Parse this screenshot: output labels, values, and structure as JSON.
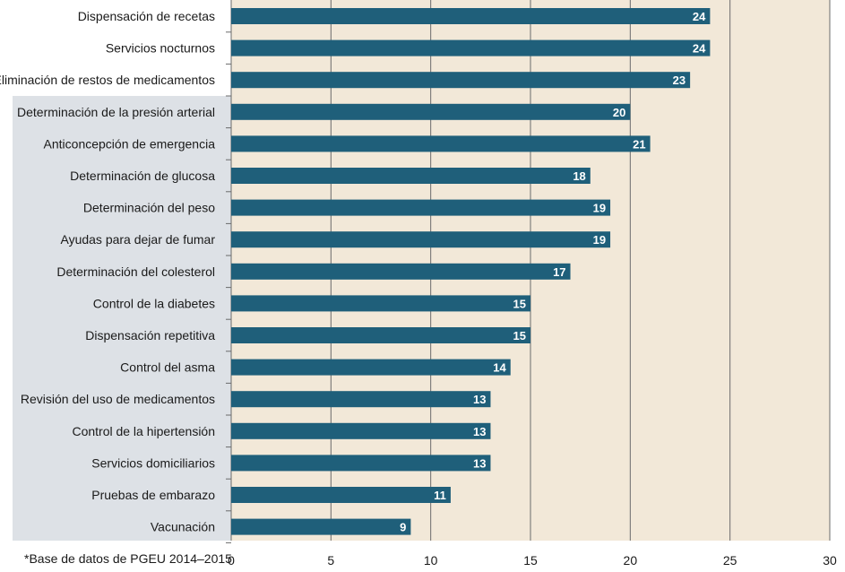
{
  "footnote": "*Base de datos de PGEU 2014–2015",
  "colors": {
    "bar": "#1f5f7a",
    "plot_background": "#f2e8d8",
    "highlight_band": "#dde1e6",
    "gridline": "#6b6b6b",
    "value_text": "#ffffff"
  },
  "chart_data": {
    "type": "bar",
    "orientation": "horizontal",
    "categories": [
      "Dispensación de recetas",
      "Servicios nocturnos",
      "Eliminación de restos de medicamentos",
      "Determinación de la presión arterial",
      "Anticoncepción de emergencia",
      "Determinación de glucosa",
      "Determinación del peso",
      "Ayudas para dejar de fumar",
      "Determinación del colesterol",
      "Control de la diabetes",
      "Dispensación repetitiva",
      "Control del asma",
      "Revisión del uso de medicamentos",
      "Control de la hipertensión",
      "Servicios domiciliarios",
      "Pruebas de embarazo",
      "Vacunación"
    ],
    "values": [
      24,
      24,
      23,
      20,
      21,
      18,
      19,
      19,
      17,
      15,
      15,
      14,
      13,
      13,
      13,
      11,
      9
    ],
    "highlighted_categories_from_index": 3,
    "xlim": [
      0,
      30
    ],
    "xticks": [
      0,
      5,
      10,
      15,
      20,
      25,
      30
    ],
    "grid": true,
    "title": "",
    "xlabel": "",
    "ylabel": ""
  }
}
